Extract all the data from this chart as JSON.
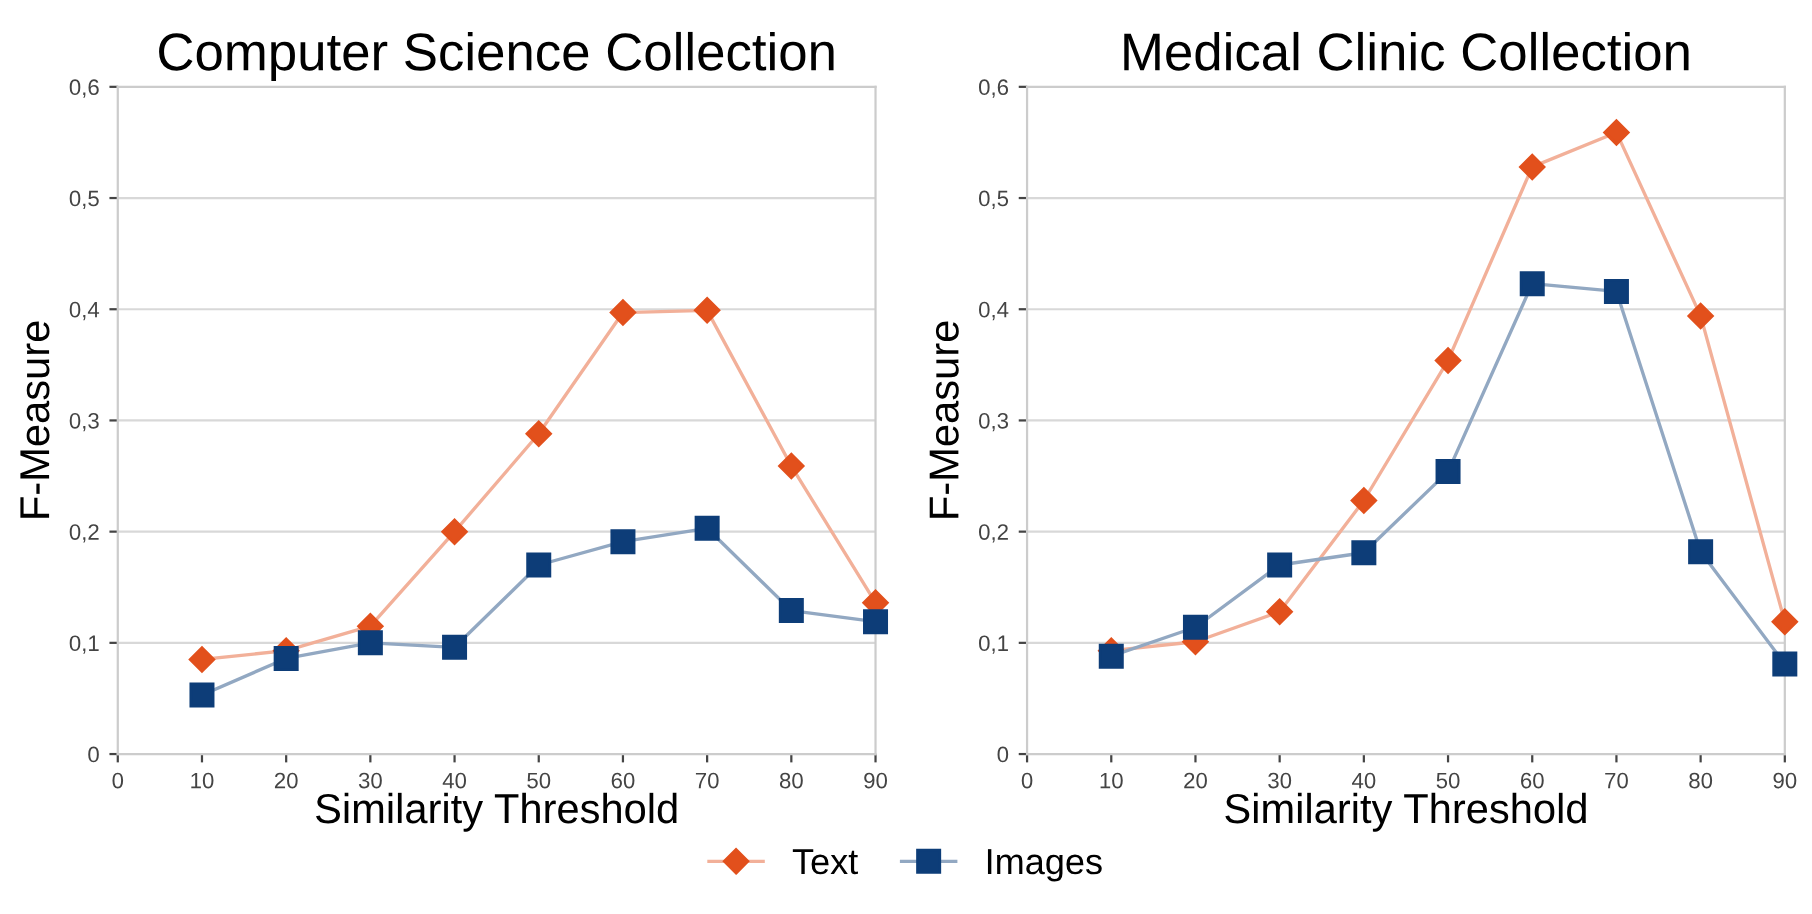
{
  "chart_data": [
    {
      "type": "line",
      "title": "Computer Science Collection",
      "xlabel": "Similarity Threshold",
      "ylabel": "F-Measure",
      "x": [
        10,
        20,
        30,
        40,
        50,
        60,
        70,
        80,
        90
      ],
      "series": [
        {
          "name": "Text",
          "color": "#e2501c",
          "marker": "diamond",
          "values": [
            0.085,
            0.093,
            0.115,
            0.2,
            0.288,
            0.397,
            0.399,
            0.259,
            0.136
          ]
        },
        {
          "name": "Images",
          "color": "#0d3d78",
          "marker": "square",
          "values": [
            0.053,
            0.086,
            0.1,
            0.096,
            0.17,
            0.191,
            0.203,
            0.129,
            0.119
          ]
        }
      ],
      "xlim": [
        0,
        90
      ],
      "xticks": [
        0,
        10,
        20,
        30,
        40,
        50,
        60,
        70,
        80,
        90
      ],
      "ylim": [
        0,
        0.6
      ],
      "yticks": [
        0,
        {
          "value": 0.1,
          "label": "0,1"
        },
        {
          "value": 0.2,
          "label": "0,2"
        },
        {
          "value": 0.3,
          "label": "0,3"
        },
        {
          "value": 0.4,
          "label": "0,4"
        },
        {
          "value": 0.5,
          "label": "0,5"
        },
        {
          "value": 0.6,
          "label": "0,6"
        }
      ],
      "grid": "y",
      "legend": "bottom"
    },
    {
      "type": "line",
      "title": "Medical Clinic Collection",
      "xlabel": "Similarity Threshold",
      "ylabel": "F-Measure",
      "x": [
        10,
        20,
        30,
        40,
        50,
        60,
        70,
        80,
        90
      ],
      "series": [
        {
          "color": "#e2501c",
          "marker": "diamond",
          "values": [
            0.093,
            0.101,
            0.128,
            0.228,
            0.354,
            0.528,
            0.559,
            0.394,
            0.119
          ]
        },
        {
          "color": "#0d3d78",
          "marker": "square",
          "values": [
            0.088,
            0.114,
            0.17,
            0.181,
            0.254,
            0.423,
            0.416,
            0.182,
            0.081
          ]
        }
      ],
      "xlim": [
        0,
        90
      ],
      "xticks": [
        0,
        10,
        20,
        30,
        40,
        50,
        60,
        70,
        80,
        90
      ],
      "ylim": [
        0,
        0.6
      ],
      "yticks": [
        0,
        {
          "value": 0.1,
          "label": "0,1"
        },
        {
          "value": 0.2,
          "label": "0,2"
        },
        {
          "value": 0.3,
          "label": "0,3"
        },
        {
          "value": 0.4,
          "label": "0,4"
        },
        {
          "value": 0.5,
          "label": "0,5"
        },
        {
          "value": 0.6,
          "label": "0,6"
        }
      ],
      "grid": "y"
    }
  ]
}
